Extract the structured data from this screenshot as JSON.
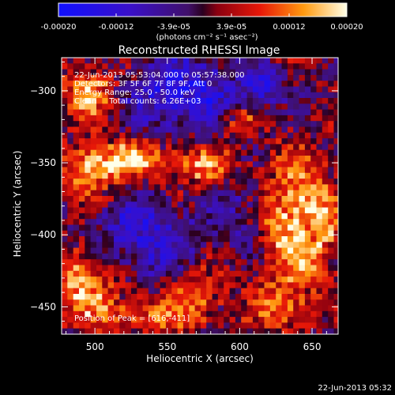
{
  "colorbar": {
    "tick_labels": [
      "-0.00020",
      "-0.00012",
      "-3.9e-05",
      "3.9e-05",
      "0.00012",
      "0.00020"
    ],
    "units_label": "(photons cm⁻² s⁻¹ asec⁻²)",
    "range": [
      -0.0002,
      0.0002
    ]
  },
  "footer": {
    "timestamp": "22-Jun-2013 05:32"
  },
  "chart_data": {
    "type": "heatmap",
    "title": "Reconstructed RHESSI Image",
    "xlabel": "Heliocentric X (arcsec)",
    "ylabel": "Heliocentric Y (arcsec)",
    "xlim": [
      477,
      668
    ],
    "ylim": [
      -469,
      -277
    ],
    "x_ticks": [
      500,
      550,
      600,
      650
    ],
    "y_ticks": [
      -450,
      -400,
      -350,
      -300
    ],
    "annotations": [
      "22-Jun-2013 05:53:04.000 to 05:57:38.000",
      "Detectors: 3F 5F 6F 7F 8F 9F, Att 0",
      "Energy Range: 25.0 - 50.0 keV",
      "Clean     Total counts: 6.26E+03"
    ],
    "peak_label": "Position of Peak = [616,-411]",
    "peak": {
      "x": 616,
      "y": -411
    },
    "pixel_size_arcsec": 4,
    "hot_regions": [
      {
        "x": 640,
        "y": -390,
        "rx": 30,
        "ry": 45,
        "strength": 1.0
      },
      {
        "x": 495,
        "y": -355,
        "rx": 20,
        "ry": 18,
        "strength": 0.75
      },
      {
        "x": 520,
        "y": -345,
        "rx": 25,
        "ry": 12,
        "strength": 0.85
      },
      {
        "x": 570,
        "y": -350,
        "rx": 25,
        "ry": 15,
        "strength": 0.7
      },
      {
        "x": 495,
        "y": -300,
        "rx": 18,
        "ry": 20,
        "strength": 0.85
      },
      {
        "x": 600,
        "y": -320,
        "rx": 15,
        "ry": 10,
        "strength": 0.5
      },
      {
        "x": 490,
        "y": -430,
        "rx": 25,
        "ry": 25,
        "strength": 0.85
      },
      {
        "x": 530,
        "y": -455,
        "rx": 35,
        "ry": 12,
        "strength": 0.6
      },
      {
        "x": 570,
        "y": -440,
        "rx": 20,
        "ry": 20,
        "strength": 0.5
      },
      {
        "x": 625,
        "y": -450,
        "rx": 20,
        "ry": 15,
        "strength": 0.6
      }
    ],
    "cool_regions": [
      {
        "x": 560,
        "y": -300,
        "rx": 40,
        "ry": 25,
        "strength": 0.9
      },
      {
        "x": 615,
        "y": -295,
        "rx": 12,
        "ry": 10,
        "strength": 1.0
      },
      {
        "x": 530,
        "y": -400,
        "rx": 35,
        "ry": 25,
        "strength": 0.8
      },
      {
        "x": 600,
        "y": -385,
        "rx": 15,
        "ry": 25,
        "strength": 0.6
      }
    ]
  }
}
